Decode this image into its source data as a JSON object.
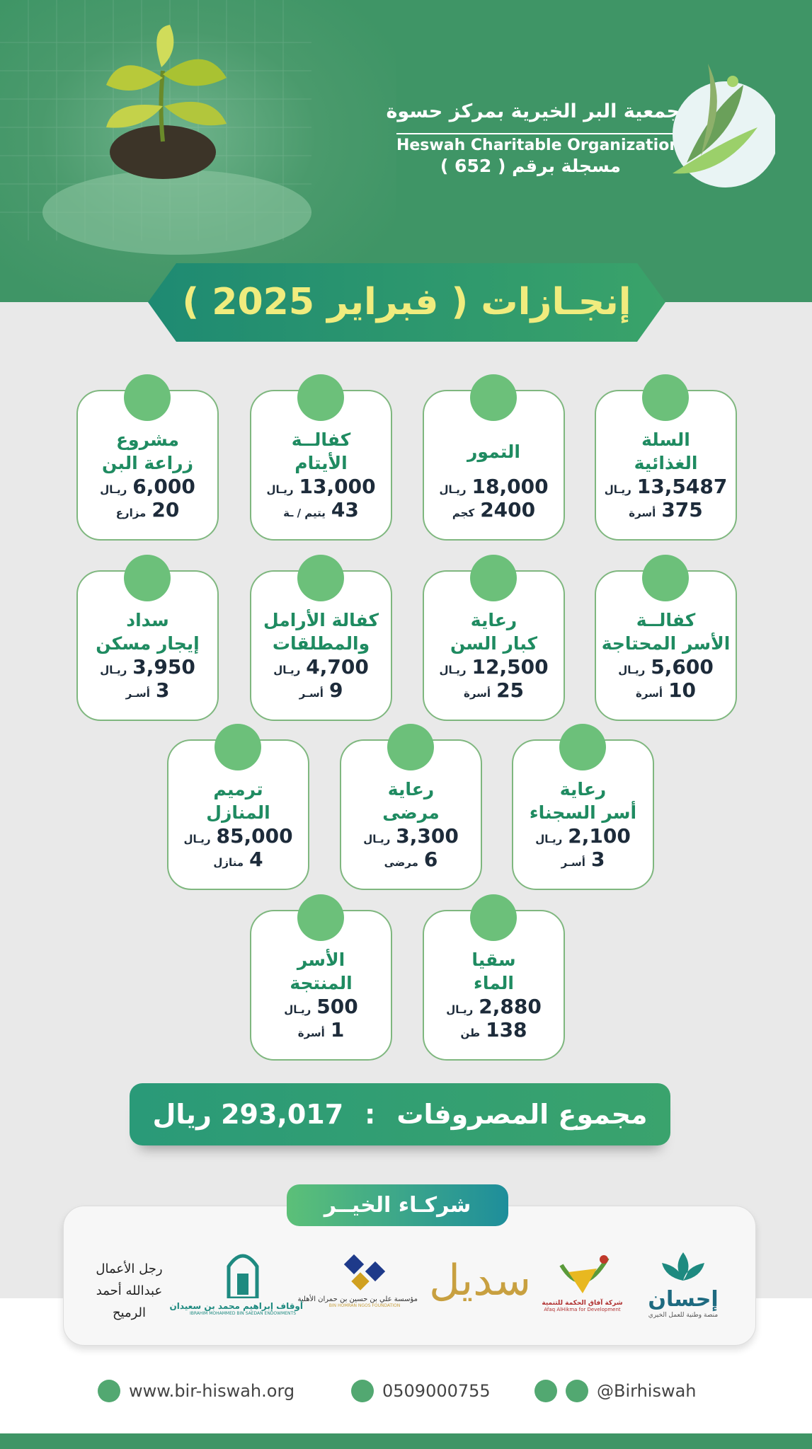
{
  "header": {
    "org_name_ar": "جمعية البر الخيرية بمركز حسوة",
    "org_name_en": "Heswah Charitable Organization",
    "registration": "مسجلة برقم ( 652 )"
  },
  "title": "إنجـازات ( فبراير 2025 )",
  "cards": [
    {
      "title": [
        "السلة",
        "الغذائية"
      ],
      "amount": "13,5487",
      "currency": "ريـال",
      "count": "375",
      "unit": "أسرة"
    },
    {
      "title": [
        "التمور"
      ],
      "amount": "18,000",
      "currency": "ريـال",
      "count": "2400",
      "unit": "كجم"
    },
    {
      "title": [
        "كفالــة",
        "الأيتام"
      ],
      "amount": "13,000",
      "currency": "ريـال",
      "count": "43",
      "unit": "يتيم / ـة"
    },
    {
      "title": [
        "مشروع",
        "زراعة البن"
      ],
      "amount": "6,000",
      "currency": "ريـال",
      "count": "20",
      "unit": "مزارع"
    },
    {
      "title": [
        "كفالــة",
        "الأسر المحتاجة"
      ],
      "amount": "5,600",
      "currency": "ريـال",
      "count": "10",
      "unit": "أسرة"
    },
    {
      "title": [
        "رعاية",
        "كبار السن"
      ],
      "amount": "12,500",
      "currency": "ريـال",
      "count": "25",
      "unit": "أسرة"
    },
    {
      "title": [
        "كفالة الأرامل",
        "والمطلقات"
      ],
      "amount": "4,700",
      "currency": "ريـال",
      "count": "9",
      "unit": "أسـر"
    },
    {
      "title": [
        "سداد",
        "إيجار مسكن"
      ],
      "amount": "3,950",
      "currency": "ريـال",
      "count": "3",
      "unit": "أسـر"
    },
    {
      "title": [
        "رعاية",
        "أسر السجناء"
      ],
      "amount": "2,100",
      "currency": "ريـال",
      "count": "3",
      "unit": "أسـر"
    },
    {
      "title": [
        "رعاية",
        "مرضى"
      ],
      "amount": "3,300",
      "currency": "ريـال",
      "count": "6",
      "unit": "مرضى"
    },
    {
      "title": [
        "ترميم",
        "المنازل"
      ],
      "amount": "85,000",
      "currency": "ريـال",
      "count": "4",
      "unit": "منازل"
    },
    {
      "title": [
        "سقيا",
        "الماء"
      ],
      "amount": "2,880",
      "currency": "ريـال",
      "count": "138",
      "unit": "طن"
    },
    {
      "title": [
        "الأسر",
        "المنتجة"
      ],
      "amount": "500",
      "currency": "ريـال",
      "count": "1",
      "unit": "أسرة"
    }
  ],
  "total": {
    "label": "مجموع المصروفات",
    "separator": ":",
    "value": "293,017 ريال"
  },
  "partners": {
    "title": "شركـاء الخيــر",
    "ihsan": {
      "name": "إحسان",
      "tagline": "منصة وطنية للعمل الخيري"
    },
    "afaq": {
      "name_ar": "شركة آفاق الحكمة للتنمية",
      "name_en": "Afaq AlHikma for Development"
    },
    "sadeel": {
      "name": "سديل"
    },
    "homran": {
      "name_ar": "مؤسسة علي بن حسين بن حمران الأهلية",
      "name_en": "BIN HOMRAN NGOS FOUNDATION"
    },
    "awqaf": {
      "name_ar": "أوقاف إبراهيم محمد بن سعيدان",
      "name_en": "IBRAHIM MOHAMMED BIN SAEDAN ENDOWMENTS"
    },
    "businessman": [
      "رجل الأعمال",
      "عبدالله أحمد",
      "الرميح"
    ]
  },
  "footer": {
    "website": "www.bir-hiswah.org",
    "phone": "0509000755",
    "social": "@Birhiswah"
  }
}
